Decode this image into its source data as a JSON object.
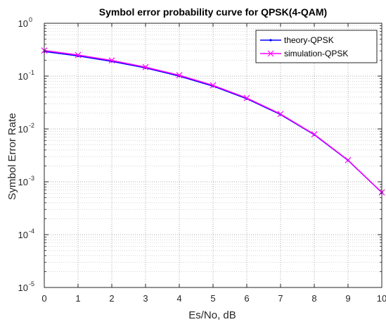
{
  "chart_data": {
    "type": "line",
    "title": "Symbol error probability curve for QPSK(4-QAM)",
    "xlabel": "Es/No, dB",
    "ylabel": "Symbol Error Rate",
    "xlim": [
      0,
      10
    ],
    "ylim": [
      1e-05,
      1
    ],
    "yscale": "log",
    "grid": true,
    "minor_grid": true,
    "legend_position": "top-right",
    "x_ticks": [
      0,
      1,
      2,
      3,
      4,
      5,
      6,
      7,
      8,
      9,
      10
    ],
    "y_ticks": [
      {
        "base": "10",
        "exp": "0",
        "value": 1
      },
      {
        "base": "10",
        "exp": "-1",
        "value": 0.1
      },
      {
        "base": "10",
        "exp": "-2",
        "value": 0.01
      },
      {
        "base": "10",
        "exp": "-3",
        "value": 0.001
      },
      {
        "base": "10",
        "exp": "-4",
        "value": 0.0001
      },
      {
        "base": "10",
        "exp": "-5",
        "value": 1e-05
      }
    ],
    "x": [
      0,
      1,
      2,
      3,
      4,
      5,
      6,
      7,
      8,
      9,
      10
    ],
    "series": [
      {
        "name": "theory-QPSK",
        "color": "#0000ff",
        "marker": "point",
        "values": [
          0.292,
          0.241,
          0.19,
          0.143,
          0.1,
          0.0646,
          0.0373,
          0.0187,
          0.00777,
          0.00254,
          0.000626
        ]
      },
      {
        "name": "simulation-QPSK",
        "color": "#ff00ff",
        "marker": "x",
        "values": [
          0.305,
          0.251,
          0.198,
          0.148,
          0.104,
          0.0669,
          0.0385,
          0.0192,
          0.0079,
          0.00257,
          0.00063
        ]
      }
    ]
  }
}
